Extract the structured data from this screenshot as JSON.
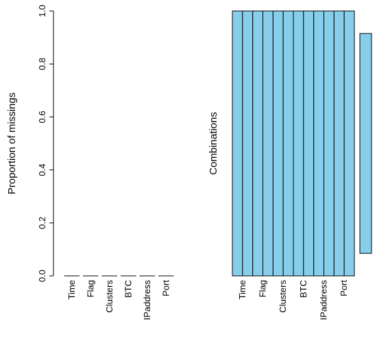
{
  "chart_data": [
    {
      "type": "bar",
      "title": "",
      "xlabel": "",
      "ylabel": "Proportion of missings",
      "categories": [
        "Time",
        "Flag",
        "Clusters",
        "BTC",
        "IPaddress",
        "Port"
      ],
      "values": [
        0,
        0,
        0,
        0,
        0,
        0
      ],
      "ylim": [
        0,
        1
      ],
      "yticks": [
        "0.0",
        "0.2",
        "0.4",
        "0.6",
        "0.8",
        "1.0"
      ],
      "grid": false,
      "bar_color": "#87CEEB"
    },
    {
      "type": "heatmap",
      "title": "",
      "xlabel": "",
      "ylabel": "Combinations",
      "variables": [
        "Time",
        "Flag",
        "Clusters",
        "BTC",
        "IPaddress",
        "Port"
      ],
      "combinations": [
        {
          "pattern": [
            0,
            0,
            0,
            0,
            0,
            0
          ],
          "proportion": 1.0
        }
      ],
      "cell_color_observed": "#87CEEB",
      "grid": false
    }
  ]
}
